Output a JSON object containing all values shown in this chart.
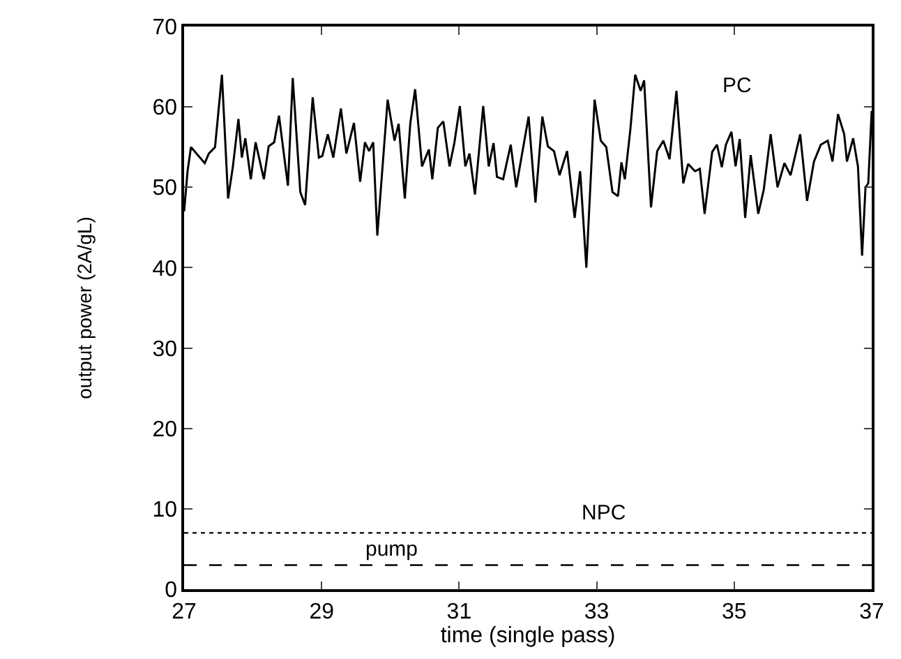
{
  "chart_data": {
    "type": "line",
    "xlabel": "time (single pass)",
    "ylabel": "output power (2A/gL)",
    "xlim": [
      27,
      37
    ],
    "ylim": [
      0,
      70
    ],
    "xticks": [
      27,
      29,
      31,
      33,
      35,
      37
    ],
    "yticks": [
      0,
      10,
      20,
      30,
      40,
      50,
      60,
      70
    ],
    "legend": false,
    "marker": "none",
    "series": [
      {
        "name": "PC",
        "color": "#000000",
        "line_style": "solid",
        "x": [
          27,
          27.05,
          27.1,
          27.2,
          27.3,
          27.36,
          27.45,
          27.55,
          27.64,
          27.71,
          27.79,
          27.84,
          27.89,
          27.97,
          28.04,
          28.16,
          28.23,
          28.31,
          28.38,
          28.51,
          28.58,
          28.69,
          28.76,
          28.87,
          28.96,
          29.01,
          29.09,
          29.17,
          29.28,
          29.36,
          29.47,
          29.56,
          29.63,
          29.69,
          29.75,
          29.81,
          29.96,
          30.06,
          30.12,
          30.21,
          30.29,
          30.36,
          30.46,
          30.56,
          30.61,
          30.69,
          30.77,
          30.86,
          30.93,
          31.01,
          31.09,
          31.15,
          31.23,
          31.35,
          31.43,
          31.5,
          31.55,
          31.64,
          31.75,
          31.83,
          32.01,
          32.11,
          32.21,
          32.29,
          32.38,
          32.46,
          32.57,
          32.68,
          32.76,
          32.85,
          32.97,
          33.06,
          33.14,
          33.23,
          33.31,
          33.36,
          33.41,
          33.49,
          33.56,
          33.64,
          33.69,
          33.79,
          33.88,
          33.97,
          34.06,
          34.16,
          34.26,
          34.33,
          34.43,
          34.5,
          34.57,
          34.68,
          34.75,
          34.82,
          34.88,
          34.96,
          35.02,
          35.08,
          35.16,
          35.24,
          35.35,
          35.43,
          35.53,
          35.63,
          35.73,
          35.82,
          35.96,
          36.06,
          36.16,
          36.26,
          36.36,
          36.43,
          36.51,
          36.6,
          36.64,
          36.73,
          36.8,
          36.86,
          36.91,
          36.95,
          37
        ],
        "values": [
          47,
          52,
          55,
          54,
          53,
          54.2,
          55,
          64,
          48.6,
          52.6,
          58.5,
          53.7,
          56.1,
          51,
          55.6,
          51,
          55.1,
          55.6,
          58.9,
          50.2,
          63.6,
          49.4,
          47.8,
          61.2,
          53.7,
          53.9,
          56.6,
          53.7,
          59.8,
          54.2,
          58,
          50.7,
          55.6,
          54.5,
          55.6,
          44,
          60.9,
          55.8,
          57.9,
          48.6,
          58,
          62.2,
          52.6,
          54.7,
          51,
          57.4,
          58.2,
          52.6,
          55.5,
          60.1,
          52.6,
          54.2,
          49.1,
          60.1,
          52.6,
          55.5,
          51.3,
          51,
          55.3,
          50,
          58.8,
          48.1,
          58.8,
          55.1,
          54.5,
          51.5,
          54.5,
          46.2,
          52,
          40,
          60.9,
          55.8,
          55,
          49.4,
          48.9,
          53.1,
          51,
          57.2,
          64,
          62,
          63.3,
          47.5,
          54.5,
          55.8,
          53.5,
          62,
          50.5,
          52.9,
          52,
          52.3,
          46.7,
          54.4,
          55.3,
          52.5,
          55.3,
          56.9,
          52.6,
          56,
          46.2,
          54,
          46.7,
          49.7,
          56.6,
          50,
          53,
          51.5,
          56.6,
          48.3,
          53.2,
          55.3,
          55.8,
          53.2,
          59.1,
          56.6,
          53.2,
          56.1,
          52.6,
          41.5,
          50,
          50.5,
          59.5
        ]
      },
      {
        "name": "NPC",
        "color": "#000000",
        "line_style": "dotted",
        "x": [
          27,
          37
        ],
        "values": [
          7,
          7
        ]
      },
      {
        "name": "pump",
        "color": "#000000",
        "line_style": "dashed",
        "x": [
          27,
          37
        ],
        "values": [
          3,
          3
        ]
      }
    ]
  }
}
